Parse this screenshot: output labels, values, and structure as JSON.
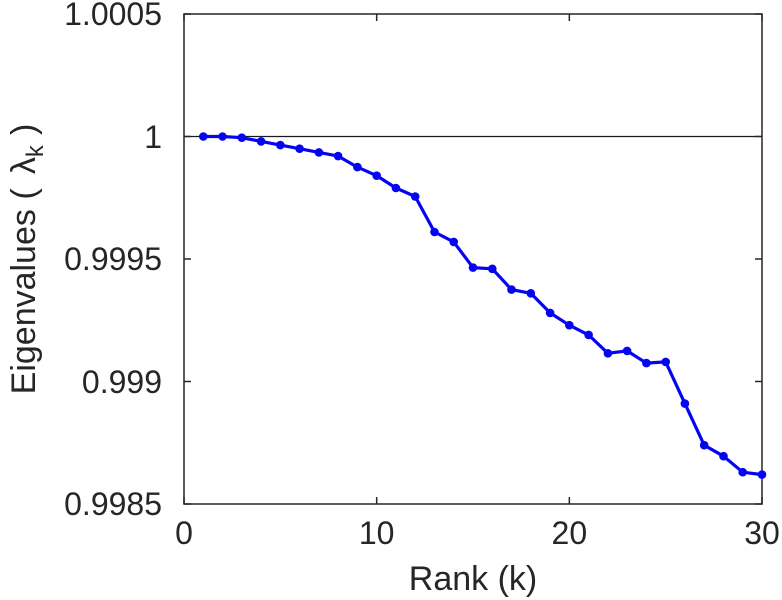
{
  "figure": {
    "background_color": "#ffffff"
  },
  "chart_data": {
    "type": "line",
    "title": "",
    "xlabel": "Rank (k)",
    "ylabel": "Eigenvalues ( λk )",
    "ylabel_parts": {
      "prefix": "Eigenvalues (",
      "symbol": "λ",
      "subscript": "k",
      "suffix": ")"
    },
    "series_name": "eigenvalues",
    "x": [
      1,
      2,
      3,
      4,
      5,
      6,
      7,
      8,
      9,
      10,
      11,
      12,
      13,
      14,
      15,
      16,
      17,
      18,
      19,
      20,
      21,
      22,
      23,
      24,
      25,
      26,
      27,
      28,
      29,
      30
    ],
    "y": [
      1.0,
      1.0,
      0.999995,
      0.99998,
      0.999965,
      0.99995,
      0.999935,
      0.99992,
      0.999875,
      0.99984,
      0.99979,
      0.999755,
      0.99961,
      0.99957,
      0.999465,
      0.99946,
      0.999375,
      0.99936,
      0.99928,
      0.99923,
      0.99919,
      0.999115,
      0.999125,
      0.999075,
      0.99908,
      0.99891,
      0.99874,
      0.998695,
      0.99863,
      0.99862
    ],
    "xlim": [
      0,
      30
    ],
    "ylim": [
      0.9985,
      1.0005
    ],
    "xticks": [
      0,
      10,
      20,
      30
    ],
    "xtick_labels": [
      "0",
      "10",
      "20",
      "30"
    ],
    "yticks": [
      0.9985,
      0.999,
      0.9995,
      1.0,
      1.0005
    ],
    "ytick_labels": [
      "0.9985",
      "0.999",
      "0.9995",
      "1",
      "1.0005"
    ],
    "reference_line_y": 1.0,
    "grid": false,
    "legend": "none",
    "line_color": "#0404f2",
    "marker": "filled-circle",
    "marker_color": "#0404f2",
    "axis_color": "#262626",
    "reference_line_color": "#1a1a1a"
  }
}
